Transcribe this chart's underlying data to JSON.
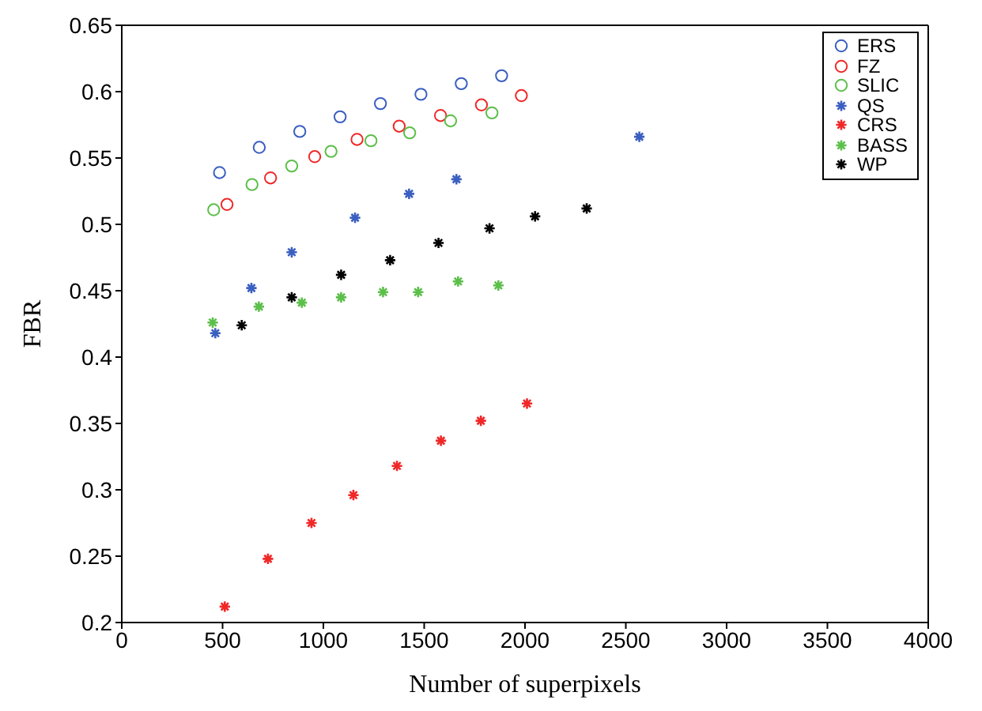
{
  "chart_data": {
    "type": "scatter",
    "xlabel": "Number of superpixels",
    "ylabel": "FBR",
    "xlim": [
      0,
      4000
    ],
    "xticks": [
      0,
      500,
      1000,
      1500,
      2000,
      2500,
      3000,
      3500,
      4000
    ],
    "ylim": [
      0.2,
      0.65
    ],
    "yticks": [
      0.2,
      0.25,
      0.3,
      0.35,
      0.4,
      0.45,
      0.5,
      0.55,
      0.6,
      0.65
    ],
    "legend": "top right",
    "series": [
      {
        "name": "ERS",
        "color": "#3b5fc0",
        "marker": "circle",
        "x": [
          485,
          682,
          883,
          1083,
          1283,
          1484,
          1684,
          1884
        ],
        "values": [
          0.539,
          0.558,
          0.57,
          0.581,
          0.591,
          0.598,
          0.606,
          0.612
        ]
      },
      {
        "name": "FZ",
        "color": "#f02828",
        "marker": "circle",
        "x": [
          522,
          738,
          957,
          1167,
          1376,
          1581,
          1784,
          1982
        ],
        "values": [
          0.515,
          0.535,
          0.551,
          0.564,
          0.574,
          0.582,
          0.59,
          0.597
        ]
      },
      {
        "name": "SLIC",
        "color": "#5cbf4a",
        "marker": "circle",
        "x": [
          456,
          646,
          843,
          1038,
          1236,
          1428,
          1631,
          1836
        ],
        "values": [
          0.511,
          0.53,
          0.544,
          0.555,
          0.563,
          0.569,
          0.578,
          0.584
        ]
      },
      {
        "name": "QS",
        "color": "#3b5fc0",
        "marker": "cross",
        "x": [
          464,
          643,
          843,
          1157,
          1425,
          1660,
          2567
        ],
        "values": [
          0.418,
          0.452,
          0.479,
          0.505,
          0.523,
          0.534,
          0.566
        ]
      },
      {
        "name": "CRS",
        "color": "#f02828",
        "marker": "cross",
        "x": [
          511,
          725,
          941,
          1149,
          1365,
          1583,
          1781,
          2010
        ],
        "values": [
          0.212,
          0.248,
          0.275,
          0.296,
          0.318,
          0.337,
          0.352,
          0.365
        ]
      },
      {
        "name": "BASS",
        "color": "#5cbf4a",
        "marker": "cross",
        "x": [
          451,
          680,
          893,
          1088,
          1296,
          1470,
          1668,
          1868
        ],
        "values": [
          0.426,
          0.438,
          0.441,
          0.445,
          0.449,
          0.449,
          0.457,
          0.454
        ]
      },
      {
        "name": "WP",
        "color": "#000000",
        "marker": "cross",
        "x": [
          595,
          843,
          1088,
          1331,
          1571,
          1824,
          2050,
          2306
        ],
        "values": [
          0.424,
          0.445,
          0.462,
          0.473,
          0.486,
          0.497,
          0.506,
          0.512
        ]
      }
    ]
  }
}
